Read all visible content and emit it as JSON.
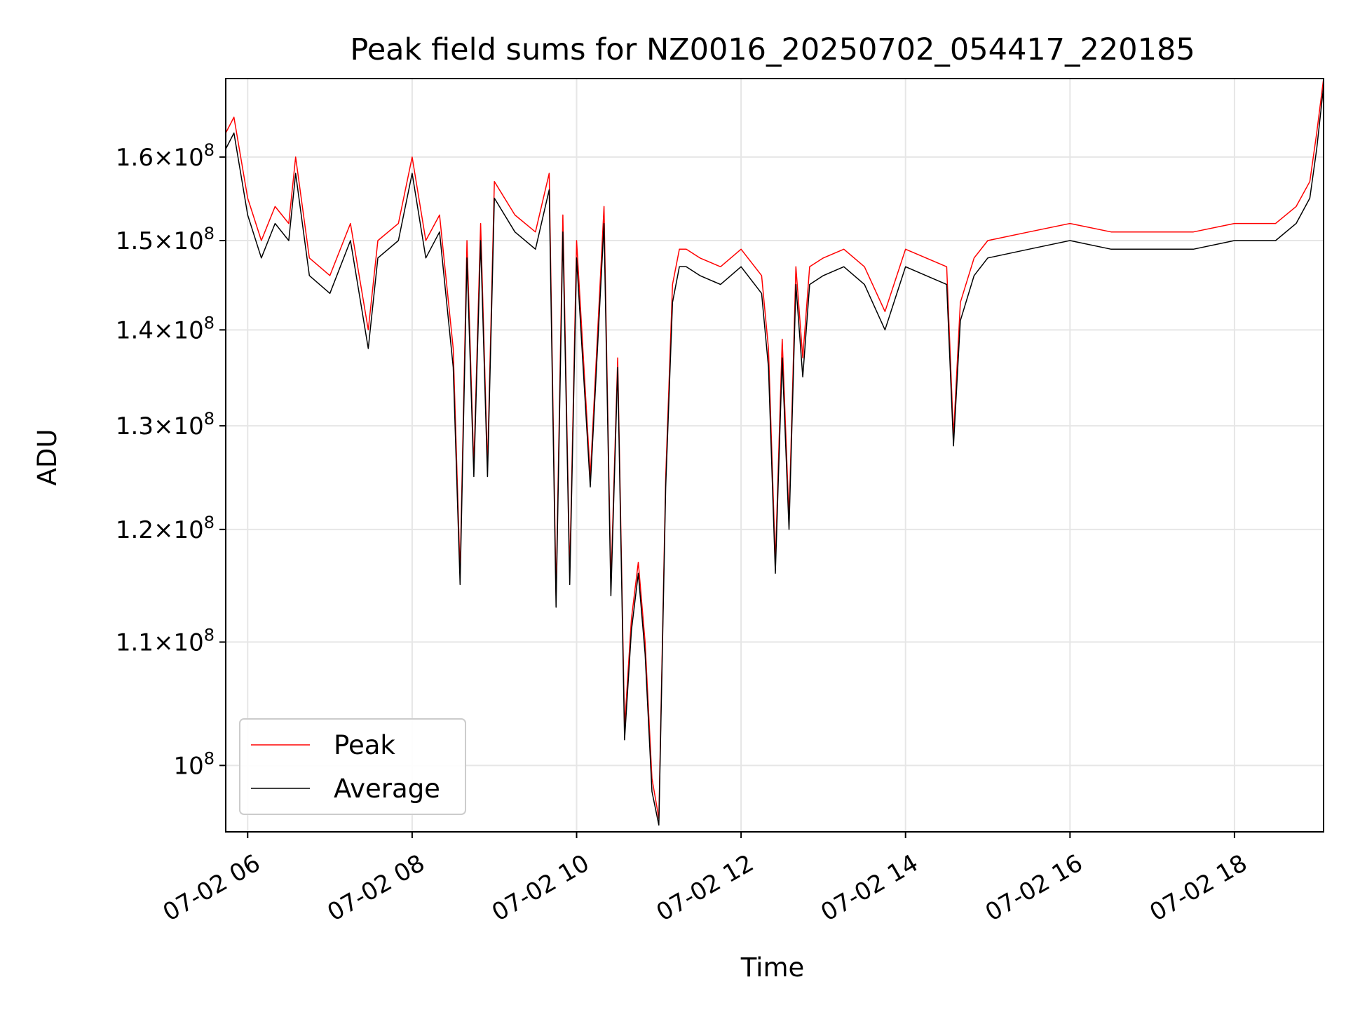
{
  "chart_data": {
    "type": "line",
    "title": "Peak field sums for NZ0016_20250702_054417_220185",
    "xlabel": "Time",
    "ylabel": "ADU",
    "yscale": "log",
    "xlim": [
      "2025-07-02 05:44",
      "2025-07-02 19:05"
    ],
    "ylim": [
      95000000,
      170000000
    ],
    "grid": true,
    "legend_position": "lower-left",
    "x_ticks": [
      {
        "value": "2025-07-02 06:00",
        "label": "07-02 06"
      },
      {
        "value": "2025-07-02 08:00",
        "label": "07-02 08"
      },
      {
        "value": "2025-07-02 10:00",
        "label": "07-02 10"
      },
      {
        "value": "2025-07-02 12:00",
        "label": "07-02 12"
      },
      {
        "value": "2025-07-02 14:00",
        "label": "07-02 14"
      },
      {
        "value": "2025-07-02 16:00",
        "label": "07-02 16"
      },
      {
        "value": "2025-07-02 18:00",
        "label": "07-02 18"
      }
    ],
    "y_ticks": [
      {
        "value": 100000000,
        "mant": "",
        "exp": "8"
      },
      {
        "value": 110000000,
        "mant": "1.1",
        "exp": "8"
      },
      {
        "value": 120000000,
        "mant": "1.2",
        "exp": "8"
      },
      {
        "value": 130000000,
        "mant": "1.3",
        "exp": "8"
      },
      {
        "value": 140000000,
        "mant": "1.4",
        "exp": "8"
      },
      {
        "value": 150000000,
        "mant": "1.5",
        "exp": "8"
      },
      {
        "value": 160000000,
        "mant": "1.6",
        "exp": "8"
      }
    ],
    "x": [
      "2025-07-02 05:44",
      "2025-07-02 05:50",
      "2025-07-02 06:00",
      "2025-07-02 06:10",
      "2025-07-02 06:20",
      "2025-07-02 06:30",
      "2025-07-02 06:35",
      "2025-07-02 06:45",
      "2025-07-02 07:00",
      "2025-07-02 07:15",
      "2025-07-02 07:28",
      "2025-07-02 07:35",
      "2025-07-02 07:50",
      "2025-07-02 08:00",
      "2025-07-02 08:10",
      "2025-07-02 08:20",
      "2025-07-02 08:30",
      "2025-07-02 08:35",
      "2025-07-02 08:40",
      "2025-07-02 08:45",
      "2025-07-02 08:50",
      "2025-07-02 08:55",
      "2025-07-02 09:00",
      "2025-07-02 09:15",
      "2025-07-02 09:30",
      "2025-07-02 09:40",
      "2025-07-02 09:45",
      "2025-07-02 09:50",
      "2025-07-02 09:55",
      "2025-07-02 10:00",
      "2025-07-02 10:10",
      "2025-07-02 10:20",
      "2025-07-02 10:25",
      "2025-07-02 10:30",
      "2025-07-02 10:35",
      "2025-07-02 10:40",
      "2025-07-02 10:45",
      "2025-07-02 10:50",
      "2025-07-02 10:55",
      "2025-07-02 11:00",
      "2025-07-02 11:05",
      "2025-07-02 11:10",
      "2025-07-02 11:15",
      "2025-07-02 11:20",
      "2025-07-02 11:30",
      "2025-07-02 11:45",
      "2025-07-02 12:00",
      "2025-07-02 12:15",
      "2025-07-02 12:20",
      "2025-07-02 12:25",
      "2025-07-02 12:30",
      "2025-07-02 12:35",
      "2025-07-02 12:40",
      "2025-07-02 12:45",
      "2025-07-02 12:50",
      "2025-07-02 13:00",
      "2025-07-02 13:15",
      "2025-07-02 13:30",
      "2025-07-02 13:45",
      "2025-07-02 14:00",
      "2025-07-02 14:15",
      "2025-07-02 14:30",
      "2025-07-02 14:35",
      "2025-07-02 14:40",
      "2025-07-02 14:50",
      "2025-07-02 15:00",
      "2025-07-02 15:30",
      "2025-07-02 16:00",
      "2025-07-02 16:30",
      "2025-07-02 17:00",
      "2025-07-02 17:30",
      "2025-07-02 18:00",
      "2025-07-02 18:30",
      "2025-07-02 18:45",
      "2025-07-02 18:55",
      "2025-07-02 19:00",
      "2025-07-02 19:05"
    ],
    "series": [
      {
        "name": "Peak",
        "color": "#ff0000",
        "values": [
          163000000,
          165000000,
          155000000,
          150000000,
          154000000,
          152000000,
          160000000,
          148000000,
          146000000,
          152000000,
          140000000,
          150000000,
          152000000,
          160000000,
          150000000,
          153000000,
          138000000,
          116000000,
          150000000,
          126000000,
          152000000,
          126000000,
          157000000,
          153000000,
          151000000,
          158000000,
          114000000,
          153000000,
          116000000,
          150000000,
          125000000,
          154000000,
          115000000,
          137000000,
          103000000,
          112000000,
          117000000,
          110000000,
          99000000,
          96000000,
          125000000,
          145000000,
          149000000,
          149000000,
          148000000,
          147000000,
          149000000,
          146000000,
          138000000,
          117000000,
          139000000,
          121000000,
          147000000,
          137000000,
          147000000,
          148000000,
          149000000,
          147000000,
          142000000,
          149000000,
          148000000,
          147000000,
          129000000,
          143000000,
          148000000,
          150000000,
          151000000,
          152000000,
          151000000,
          151000000,
          151000000,
          152000000,
          152000000,
          154000000,
          157000000,
          163000000,
          170000000
        ]
      },
      {
        "name": "Average",
        "color": "#000000",
        "values": [
          161000000,
          163000000,
          153000000,
          148000000,
          152000000,
          150000000,
          158000000,
          146000000,
          144000000,
          150000000,
          138000000,
          148000000,
          150000000,
          158000000,
          148000000,
          151000000,
          136000000,
          115000000,
          148000000,
          125000000,
          150000000,
          125000000,
          155000000,
          151000000,
          149000000,
          156000000,
          113000000,
          151000000,
          115000000,
          148000000,
          124000000,
          152000000,
          114000000,
          136000000,
          102000000,
          111000000,
          116000000,
          109000000,
          98000000,
          95500000,
          124000000,
          143000000,
          147000000,
          147000000,
          146000000,
          145000000,
          147000000,
          144000000,
          136000000,
          116000000,
          137000000,
          120000000,
          145000000,
          135000000,
          145000000,
          146000000,
          147000000,
          145000000,
          140000000,
          147000000,
          146000000,
          145000000,
          128000000,
          141000000,
          146000000,
          148000000,
          149000000,
          150000000,
          149000000,
          149000000,
          149000000,
          150000000,
          150000000,
          152000000,
          155000000,
          161000000,
          169000000
        ]
      }
    ]
  }
}
